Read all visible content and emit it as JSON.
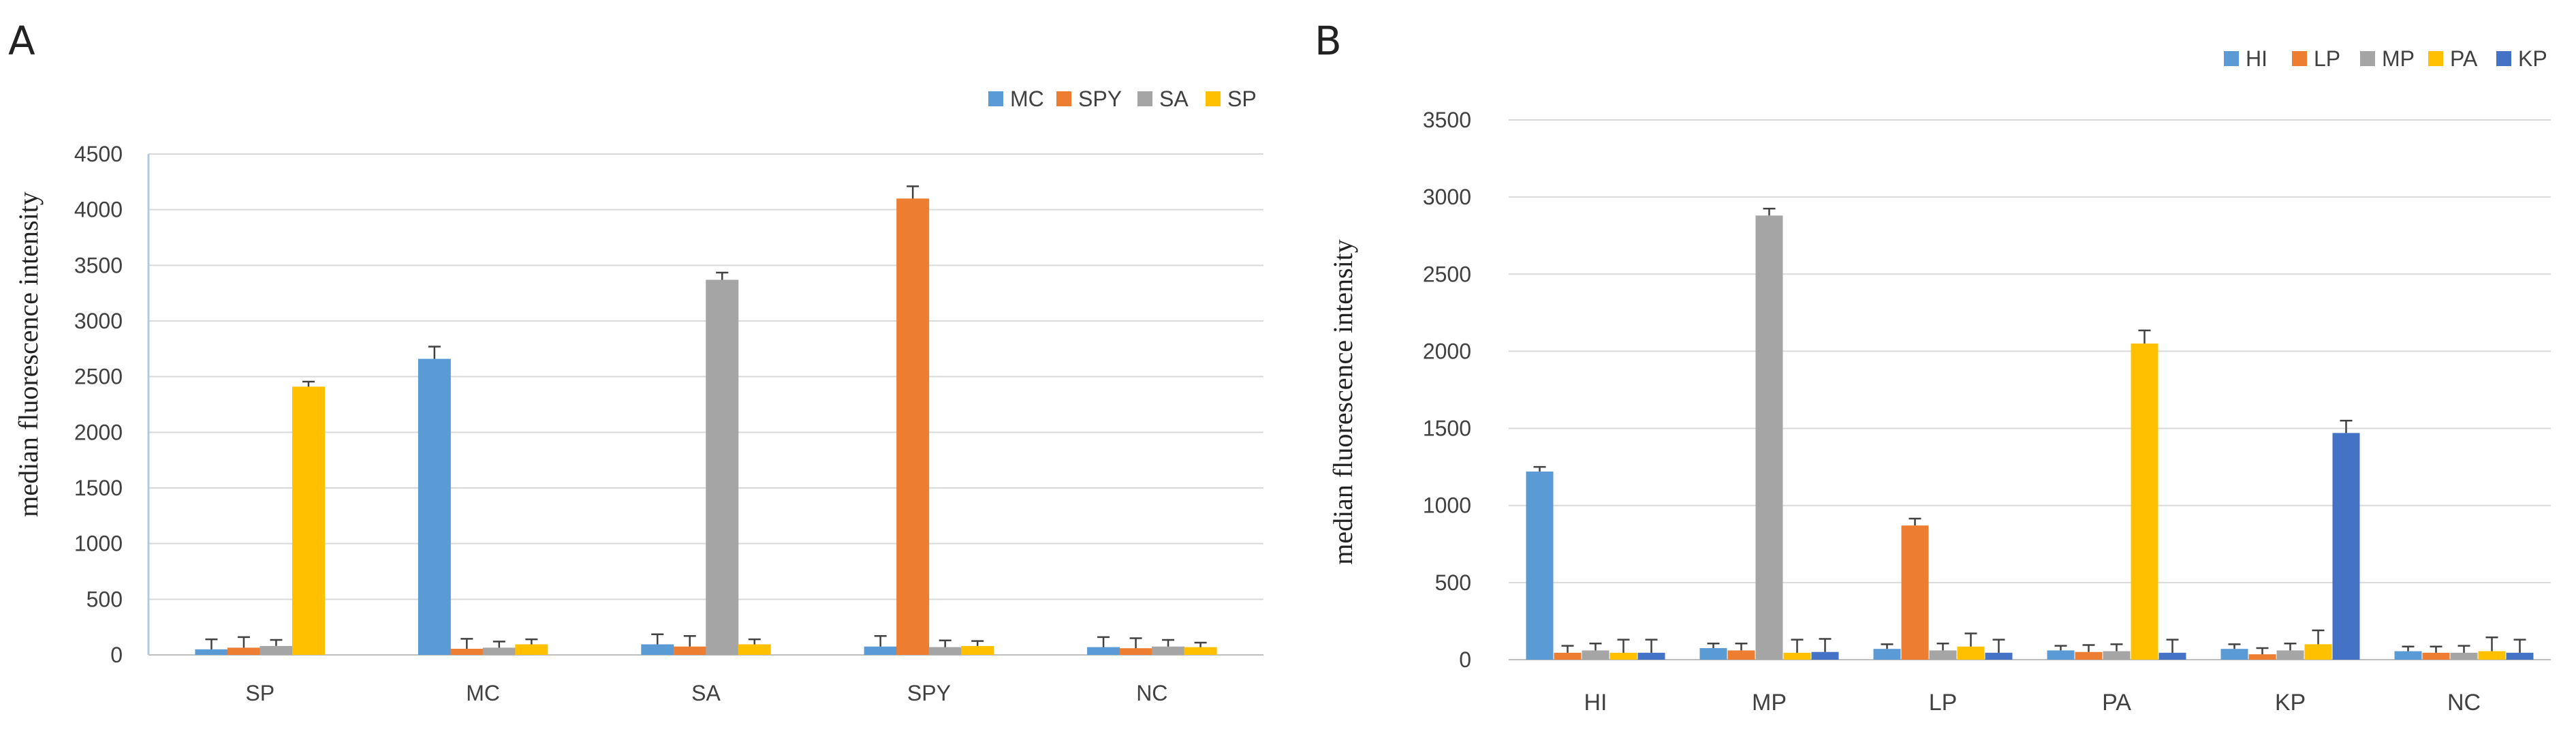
{
  "chart_data": [
    {
      "panel": "A",
      "type": "bar",
      "title": "",
      "xlabel": "",
      "ylabel": "median fluorescence intensity",
      "ylim": [
        0,
        4500
      ],
      "yticks": [
        0,
        500,
        1000,
        1500,
        2000,
        2500,
        3000,
        3500,
        4000,
        4500
      ],
      "grid": true,
      "legend_position": "top-right",
      "categories": [
        "SP",
        "MC",
        "SA",
        "SPY",
        "NC"
      ],
      "series": [
        {
          "name": "MC",
          "color": "#5b9bd5",
          "values": [
            50,
            2660,
            95,
            75,
            70
          ],
          "errors": [
            90,
            110,
            90,
            95,
            90
          ]
        },
        {
          "name": "SPY",
          "color": "#ed7d31",
          "values": [
            65,
            55,
            75,
            4100,
            60
          ],
          "errors": [
            95,
            90,
            95,
            110,
            90
          ]
        },
        {
          "name": "SA",
          "color": "#a5a5a5",
          "values": [
            80,
            65,
            3370,
            70,
            75
          ],
          "errors": [
            55,
            55,
            65,
            60,
            60
          ]
        },
        {
          "name": "SP",
          "color": "#ffc000",
          "values": [
            2410,
            95,
            95,
            80,
            70
          ],
          "errors": [
            45,
            45,
            45,
            45,
            40
          ]
        }
      ]
    },
    {
      "panel": "B",
      "type": "bar",
      "title": "",
      "xlabel": "",
      "ylabel": "median fluorescence intensity",
      "ylim": [
        0,
        3500
      ],
      "yticks": [
        0,
        500,
        1000,
        1500,
        2000,
        2500,
        3000,
        3500
      ],
      "grid": true,
      "legend_position": "top-right",
      "categories": [
        "HI",
        "MP",
        "LP",
        "PA",
        "KP",
        "NC"
      ],
      "series": [
        {
          "name": "HI",
          "color": "#5b9bd5",
          "values": [
            1220,
            75,
            70,
            60,
            70,
            55
          ],
          "errors": [
            30,
            30,
            30,
            30,
            30,
            30
          ]
        },
        {
          "name": "LP",
          "color": "#ed7d31",
          "values": [
            45,
            60,
            870,
            50,
            35,
            45
          ],
          "errors": [
            45,
            45,
            45,
            45,
            40,
            40
          ]
        },
        {
          "name": "MP",
          "color": "#a5a5a5",
          "values": [
            60,
            2880,
            60,
            55,
            60,
            45
          ],
          "errors": [
            45,
            45,
            45,
            45,
            45,
            45
          ]
        },
        {
          "name": "PA",
          "color": "#ffc000",
          "values": [
            45,
            45,
            85,
            2050,
            100,
            55
          ],
          "errors": [
            85,
            85,
            85,
            85,
            90,
            90
          ]
        },
        {
          "name": "KP",
          "color": "#4472c4",
          "values": [
            45,
            50,
            45,
            45,
            1470,
            45
          ],
          "errors": [
            85,
            85,
            85,
            85,
            80,
            85
          ]
        }
      ]
    }
  ]
}
